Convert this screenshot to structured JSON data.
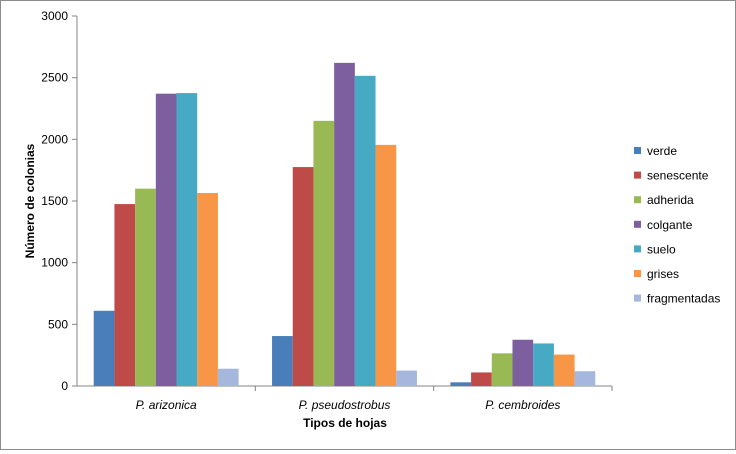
{
  "chart_data": {
    "type": "bar",
    "title": "",
    "xlabel": "Tipos de hojas",
    "ylabel": "Número de colonias",
    "ylim": [
      0,
      3000
    ],
    "yticks": [
      0,
      500,
      1000,
      1500,
      2000,
      2500,
      3000
    ],
    "categories": [
      "P. arizonica",
      "P. pseudostrobus",
      "P. cembroides"
    ],
    "grid": false,
    "legend_position": "right",
    "series": [
      {
        "name": "verde",
        "color": "#4a7ebb",
        "values": [
          610,
          405,
          30
        ]
      },
      {
        "name": "senescente",
        "color": "#be4b48",
        "values": [
          1475,
          1775,
          110
        ]
      },
      {
        "name": "adherida",
        "color": "#98b954",
        "values": [
          1600,
          2150,
          265
        ]
      },
      {
        "name": "colgante",
        "color": "#7d5fa0",
        "values": [
          2370,
          2620,
          375
        ]
      },
      {
        "name": "suelo",
        "color": "#46aac5",
        "values": [
          2375,
          2515,
          345
        ]
      },
      {
        "name": "grises",
        "color": "#f79646",
        "values": [
          1565,
          1955,
          255
        ]
      },
      {
        "name": "fragmentadas",
        "color": "#a5b7dc",
        "values": [
          140,
          125,
          120
        ]
      }
    ]
  }
}
